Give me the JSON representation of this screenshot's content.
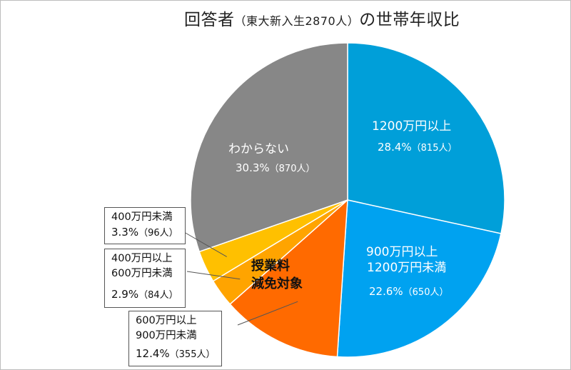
{
  "chart_data": {
    "type": "pie",
    "title_main": "回答者",
    "title_paren": "（東大新入生2870人）",
    "title_tail": "の世帯年収比",
    "slices": [
      {
        "label_lines": [
          "1200万円以上"
        ],
        "percent": 28.4,
        "pct_text": "28.4%",
        "count_text": "（815人）",
        "color": "#009fd9"
      },
      {
        "label_lines": [
          "900万円以上",
          "1200万円未満"
        ],
        "percent": 22.6,
        "pct_text": "22.6%",
        "count_text": "（650人）",
        "color": "#00a2f0"
      },
      {
        "label_lines": [
          "600万円以上",
          "900万円未満"
        ],
        "percent": 12.4,
        "pct_text": "12.4%",
        "count_text": "（355人）",
        "color": "#ff6a00"
      },
      {
        "label_lines": [
          "400万円以上",
          "600万円未満"
        ],
        "percent": 2.9,
        "pct_text": "2.9%",
        "count_text": "（84人）",
        "color": "#ffa400"
      },
      {
        "label_lines": [
          "400万円未満"
        ],
        "percent": 3.3,
        "pct_text": "3.3%",
        "count_text": "（96人）",
        "color": "#ffc000"
      },
      {
        "label_lines": [
          "わからない"
        ],
        "percent": 30.3,
        "pct_text": "30.3%",
        "count_text": "（870人）",
        "color": "#878787"
      }
    ],
    "annotation_lines": [
      "授業料",
      "減免対象"
    ]
  }
}
